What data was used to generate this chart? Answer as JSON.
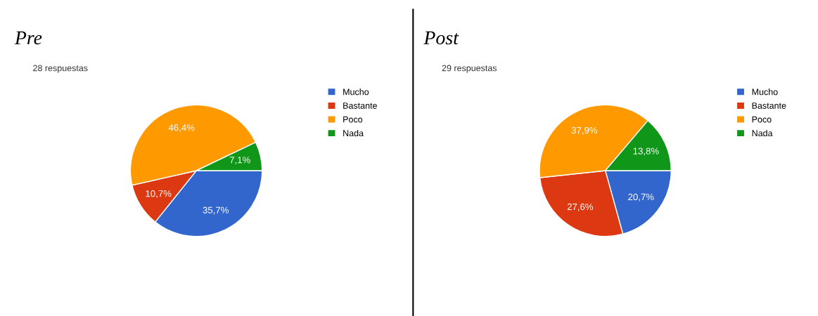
{
  "chart_data": [
    {
      "type": "pie",
      "title": "Pre",
      "subtitle": "28 respuestas",
      "categories": [
        "Mucho",
        "Bastante",
        "Poco",
        "Nada"
      ],
      "values": [
        35.7,
        10.7,
        46.4,
        7.1
      ],
      "colors": [
        "#3366cc",
        "#dc3912",
        "#ff9900",
        "#109618"
      ],
      "value_labels": [
        "35,7%",
        "10,7%",
        "46,4%",
        "7,1%"
      ],
      "legend": "right"
    },
    {
      "type": "pie",
      "title": "Post",
      "subtitle": "29 respuestas",
      "categories": [
        "Mucho",
        "Bastante",
        "Poco",
        "Nada"
      ],
      "values": [
        20.7,
        27.6,
        37.9,
        13.8
      ],
      "colors": [
        "#3366cc",
        "#dc3912",
        "#ff9900",
        "#109618"
      ],
      "value_labels": [
        "20,7%",
        "27,6%",
        "37,9%",
        "13,8%"
      ],
      "legend": "right"
    }
  ]
}
